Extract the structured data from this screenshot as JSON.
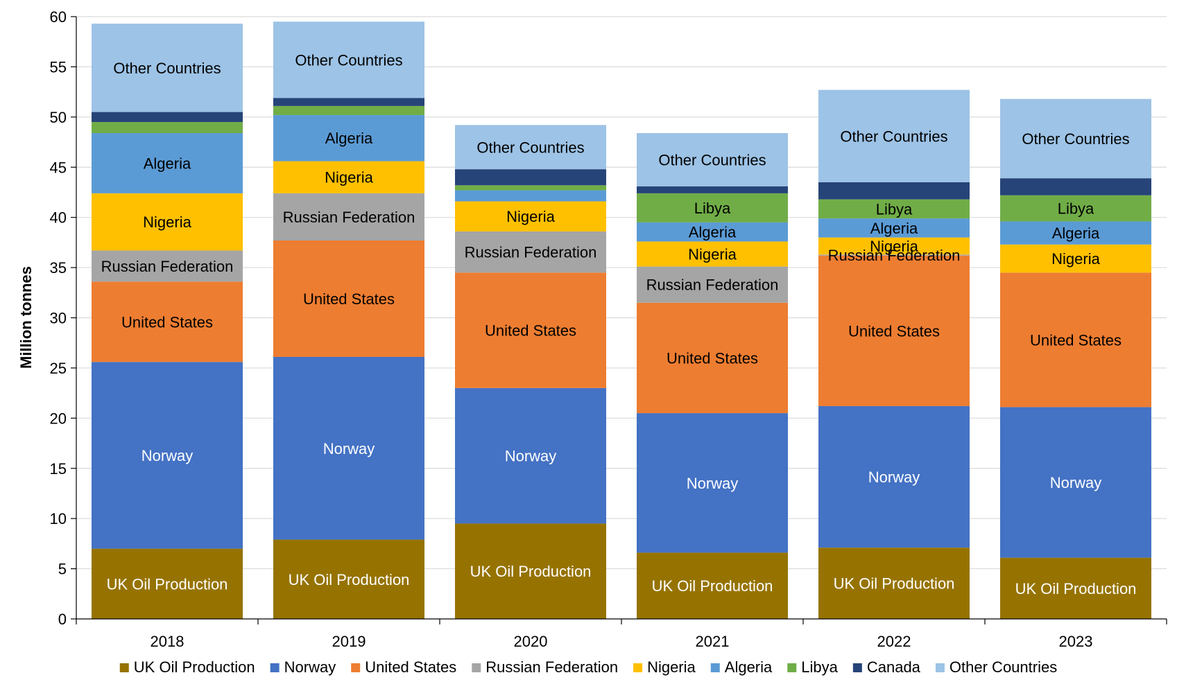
{
  "chart_data": {
    "type": "bar",
    "stacked": true,
    "title": "",
    "xlabel": "",
    "ylabel": "Million tonnes",
    "ylim": [
      0,
      60
    ],
    "yticks": [
      0,
      5,
      10,
      15,
      20,
      25,
      30,
      35,
      40,
      45,
      50,
      55,
      60
    ],
    "grid": "horizontal",
    "legend_position": "bottom",
    "categories": [
      "2018",
      "2019",
      "2020",
      "2021",
      "2022",
      "2023"
    ],
    "series": [
      {
        "name": "UK Oil Production",
        "color": "#967300",
        "label_color": "#ffffff",
        "values": [
          7.0,
          7.9,
          9.5,
          6.6,
          7.1,
          6.1
        ]
      },
      {
        "name": "Norway",
        "color": "#4472c4",
        "label_color": "#ffffff",
        "values": [
          18.6,
          18.2,
          13.5,
          13.9,
          14.1,
          15.0
        ]
      },
      {
        "name": "United States",
        "color": "#ed7d31",
        "label_color": "#000000",
        "values": [
          8.0,
          11.6,
          11.5,
          11.0,
          15.0,
          13.4
        ]
      },
      {
        "name": "Russian Federation",
        "color": "#a5a5a5",
        "label_color": "#000000",
        "values": [
          3.1,
          4.7,
          4.1,
          3.6,
          0.1,
          0
        ]
      },
      {
        "name": "Nigeria",
        "color": "#ffc000",
        "label_color": "#000000",
        "values": [
          5.7,
          3.2,
          3.0,
          2.5,
          1.7,
          2.8
        ]
      },
      {
        "name": "Algeria",
        "color": "#5b9bd5",
        "label_color": "#000000",
        "values": [
          6.0,
          4.6,
          1.1,
          1.9,
          1.9,
          2.3
        ]
      },
      {
        "name": "Libya",
        "color": "#70ad47",
        "label_color": "#000000",
        "values": [
          1.1,
          0.9,
          0.5,
          2.9,
          1.9,
          2.6
        ]
      },
      {
        "name": "Canada",
        "color": "#264478",
        "label_color": "#ffffff",
        "values": [
          1.0,
          0.8,
          1.6,
          0.7,
          1.7,
          1.7
        ]
      },
      {
        "name": "Other Countries",
        "color": "#9dc3e6",
        "label_color": "#000000",
        "values": [
          8.8,
          7.6,
          4.4,
          5.3,
          9.2,
          7.9
        ]
      }
    ],
    "segment_labels": [
      [
        "UK Oil Production",
        "Norway",
        "United States",
        "Russian Federation",
        "Nigeria",
        "Algeria",
        "",
        "",
        "Other Countries"
      ],
      [
        "UK Oil Production",
        "Norway",
        "United States",
        "Russian Federation",
        "Nigeria",
        "Algeria",
        "",
        "",
        "Other Countries"
      ],
      [
        "UK Oil Production",
        "Norway",
        "United States",
        "Russian Federation",
        "Nigeria",
        "",
        "",
        "",
        "Other Countries"
      ],
      [
        "UK Oil Production",
        "Norway",
        "United States",
        "Russian Federation",
        "Nigeria",
        "Algeria",
        "Libya",
        "",
        "Other Countries"
      ],
      [
        "UK Oil Production",
        "Norway",
        "United States",
        "Russian Federation",
        "Nigeria",
        "Algeria",
        "Libya",
        "",
        "Other Countries"
      ],
      [
        "UK Oil Production",
        "Norway",
        "United States",
        "",
        "Nigeria",
        "Algeria",
        "Libya",
        "",
        "Other Countries"
      ]
    ]
  }
}
